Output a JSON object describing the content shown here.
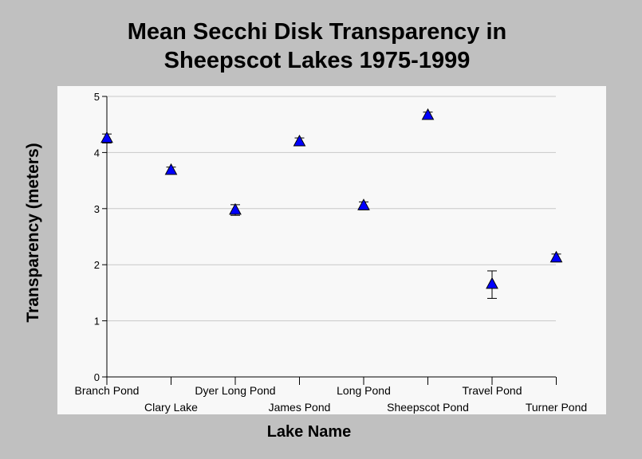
{
  "chart_data": {
    "type": "scatter",
    "title_lines": [
      "Mean Secchi Disk Transparency in",
      "Sheepscot Lakes 1975-1999"
    ],
    "xlabel": "Lake Name",
    "ylabel": "Transparency (meters)",
    "ylim": [
      0,
      5
    ],
    "yticks": [
      0,
      1,
      2,
      3,
      4,
      5
    ],
    "grid": true,
    "marker": "triangle",
    "marker_color": "#0000ff",
    "categories": [
      "Branch Pond",
      "Clary Lake",
      "Dyer Long Pond",
      "James Pond",
      "Long Pond",
      "Sheepscot Pond",
      "Travel Pond",
      "Turner Pond"
    ],
    "values": [
      4.25,
      3.68,
      2.97,
      4.19,
      3.05,
      4.66,
      1.65,
      2.12
    ],
    "error_low": [
      4.17,
      3.63,
      2.88,
      4.13,
      2.98,
      4.61,
      1.4,
      2.05
    ],
    "error_high": [
      4.33,
      3.74,
      3.07,
      4.26,
      3.12,
      4.72,
      1.89,
      2.19
    ]
  }
}
